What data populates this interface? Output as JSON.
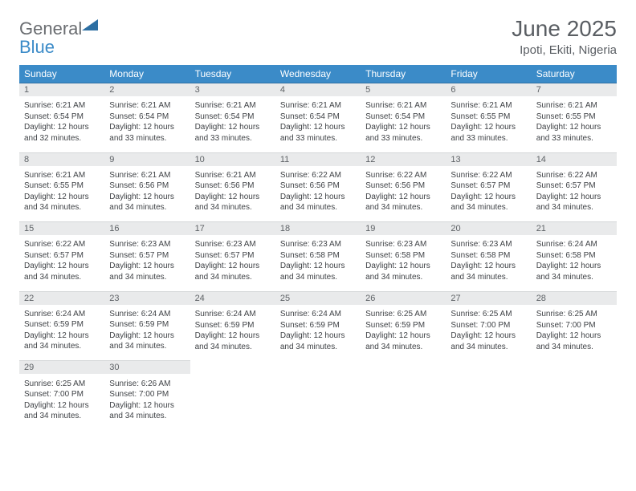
{
  "logo": {
    "word1": "General",
    "word2": "Blue"
  },
  "title": "June 2025",
  "location": "Ipoti, Ekiti, Nigeria",
  "colors": {
    "header_bg": "#3b8bc8",
    "header_text": "#ffffff",
    "daynum_bg": "#e9eaeb",
    "row_border": "#3b8bc8",
    "body_text": "#3f4246",
    "title_text": "#5a5e63"
  },
  "day_headers": [
    "Sunday",
    "Monday",
    "Tuesday",
    "Wednesday",
    "Thursday",
    "Friday",
    "Saturday"
  ],
  "weeks": [
    [
      {
        "n": "1",
        "sunrise": "6:21 AM",
        "sunset": "6:54 PM",
        "daylight": "12 hours and 32 minutes."
      },
      {
        "n": "2",
        "sunrise": "6:21 AM",
        "sunset": "6:54 PM",
        "daylight": "12 hours and 33 minutes."
      },
      {
        "n": "3",
        "sunrise": "6:21 AM",
        "sunset": "6:54 PM",
        "daylight": "12 hours and 33 minutes."
      },
      {
        "n": "4",
        "sunrise": "6:21 AM",
        "sunset": "6:54 PM",
        "daylight": "12 hours and 33 minutes."
      },
      {
        "n": "5",
        "sunrise": "6:21 AM",
        "sunset": "6:54 PM",
        "daylight": "12 hours and 33 minutes."
      },
      {
        "n": "6",
        "sunrise": "6:21 AM",
        "sunset": "6:55 PM",
        "daylight": "12 hours and 33 minutes."
      },
      {
        "n": "7",
        "sunrise": "6:21 AM",
        "sunset": "6:55 PM",
        "daylight": "12 hours and 33 minutes."
      }
    ],
    [
      {
        "n": "8",
        "sunrise": "6:21 AM",
        "sunset": "6:55 PM",
        "daylight": "12 hours and 34 minutes."
      },
      {
        "n": "9",
        "sunrise": "6:21 AM",
        "sunset": "6:56 PM",
        "daylight": "12 hours and 34 minutes."
      },
      {
        "n": "10",
        "sunrise": "6:21 AM",
        "sunset": "6:56 PM",
        "daylight": "12 hours and 34 minutes."
      },
      {
        "n": "11",
        "sunrise": "6:22 AM",
        "sunset": "6:56 PM",
        "daylight": "12 hours and 34 minutes."
      },
      {
        "n": "12",
        "sunrise": "6:22 AM",
        "sunset": "6:56 PM",
        "daylight": "12 hours and 34 minutes."
      },
      {
        "n": "13",
        "sunrise": "6:22 AM",
        "sunset": "6:57 PM",
        "daylight": "12 hours and 34 minutes."
      },
      {
        "n": "14",
        "sunrise": "6:22 AM",
        "sunset": "6:57 PM",
        "daylight": "12 hours and 34 minutes."
      }
    ],
    [
      {
        "n": "15",
        "sunrise": "6:22 AM",
        "sunset": "6:57 PM",
        "daylight": "12 hours and 34 minutes."
      },
      {
        "n": "16",
        "sunrise": "6:23 AM",
        "sunset": "6:57 PM",
        "daylight": "12 hours and 34 minutes."
      },
      {
        "n": "17",
        "sunrise": "6:23 AM",
        "sunset": "6:57 PM",
        "daylight": "12 hours and 34 minutes."
      },
      {
        "n": "18",
        "sunrise": "6:23 AM",
        "sunset": "6:58 PM",
        "daylight": "12 hours and 34 minutes."
      },
      {
        "n": "19",
        "sunrise": "6:23 AM",
        "sunset": "6:58 PM",
        "daylight": "12 hours and 34 minutes."
      },
      {
        "n": "20",
        "sunrise": "6:23 AM",
        "sunset": "6:58 PM",
        "daylight": "12 hours and 34 minutes."
      },
      {
        "n": "21",
        "sunrise": "6:24 AM",
        "sunset": "6:58 PM",
        "daylight": "12 hours and 34 minutes."
      }
    ],
    [
      {
        "n": "22",
        "sunrise": "6:24 AM",
        "sunset": "6:59 PM",
        "daylight": "12 hours and 34 minutes."
      },
      {
        "n": "23",
        "sunrise": "6:24 AM",
        "sunset": "6:59 PM",
        "daylight": "12 hours and 34 minutes."
      },
      {
        "n": "24",
        "sunrise": "6:24 AM",
        "sunset": "6:59 PM",
        "daylight": "12 hours and 34 minutes."
      },
      {
        "n": "25",
        "sunrise": "6:24 AM",
        "sunset": "6:59 PM",
        "daylight": "12 hours and 34 minutes."
      },
      {
        "n": "26",
        "sunrise": "6:25 AM",
        "sunset": "6:59 PM",
        "daylight": "12 hours and 34 minutes."
      },
      {
        "n": "27",
        "sunrise": "6:25 AM",
        "sunset": "7:00 PM",
        "daylight": "12 hours and 34 minutes."
      },
      {
        "n": "28",
        "sunrise": "6:25 AM",
        "sunset": "7:00 PM",
        "daylight": "12 hours and 34 minutes."
      }
    ],
    [
      {
        "n": "29",
        "sunrise": "6:25 AM",
        "sunset": "7:00 PM",
        "daylight": "12 hours and 34 minutes."
      },
      {
        "n": "30",
        "sunrise": "6:26 AM",
        "sunset": "7:00 PM",
        "daylight": "12 hours and 34 minutes."
      },
      null,
      null,
      null,
      null,
      null
    ]
  ],
  "labels": {
    "sunrise_prefix": "Sunrise: ",
    "sunset_prefix": "Sunset: ",
    "daylight_prefix": "Daylight: "
  }
}
